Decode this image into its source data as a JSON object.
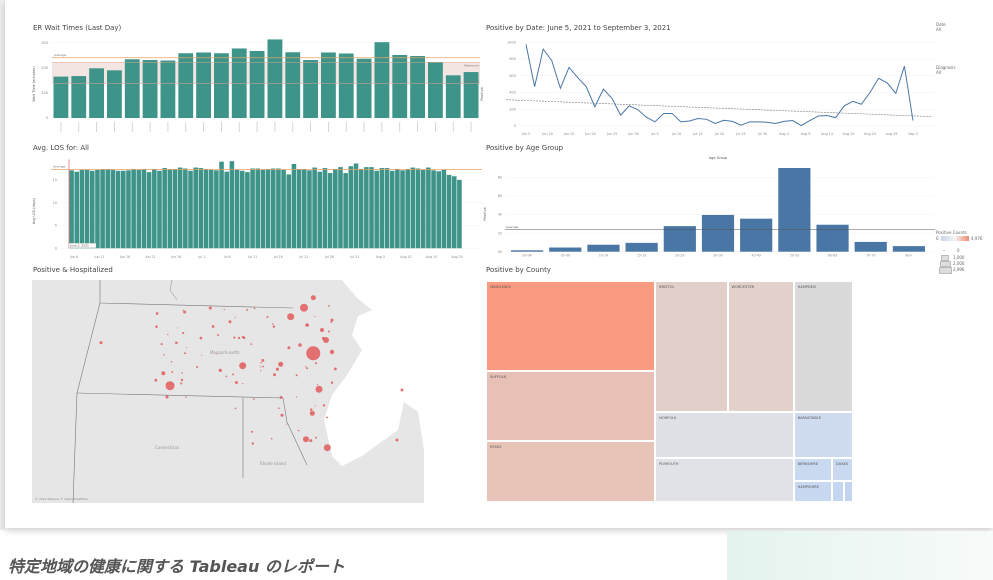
{
  "caption": "特定地域の健康に関する Tableau のレポート",
  "colors": {
    "teal": "#3f948a",
    "blue": "#4a76a6",
    "average_line": "#e7a46a",
    "map_dot": "#e05a5a",
    "map_land": "#e6e6e6"
  },
  "chart_data": [
    {
      "type": "bar",
      "title": "ER Wait Times (Last Day)",
      "ylabel": "Wait Time (minutes)",
      "ylim": [
        0,
        300
      ],
      "yticks": [
        "0",
        "100",
        "200",
        "300"
      ],
      "values": [
        165,
        167,
        198,
        190,
        234,
        231,
        229,
        258,
        261,
        258,
        277,
        267,
        313,
        262,
        231,
        261,
        257,
        236,
        302,
        251,
        247,
        222,
        170,
        183
      ],
      "reference_lines": [
        {
          "label": "Average",
          "value": 240
        },
        {
          "label": "Maximum",
          "value": 222
        },
        {
          "label": "Expected",
          "value": 137
        }
      ]
    },
    {
      "type": "line",
      "title": "Positive by Date: June 5, 2021 to September 3, 2021",
      "ylabel": "Positive",
      "ylim": [
        0,
        1000
      ],
      "yticks": [
        "0",
        "200",
        "400",
        "600",
        "800",
        "1000"
      ],
      "xticks": [
        "Jun 5",
        "Jun 10",
        "Jun 15",
        "Jun 20",
        "Jun 25",
        "Jun 30",
        "Jul 5",
        "Jul 10",
        "Jul 15",
        "Jul 20",
        "Jul 25",
        "Jul 30",
        "Aug 4",
        "Aug 9",
        "Aug 14",
        "Aug 19",
        "Aug 24",
        "Aug 29",
        "Sep 3"
      ],
      "x": [
        "Jun 5",
        "Jun 7",
        "Jun 9",
        "Jun 11",
        "Jun 13",
        "Jun 15",
        "Jun 17",
        "Jun 19",
        "Jun 21",
        "Jun 23",
        "Jun 25",
        "Jun 27",
        "Jun 29",
        "Jul 1",
        "Jul 3",
        "Jul 5",
        "Jul 7",
        "Jul 9",
        "Jul 11",
        "Jul 13",
        "Jul 15",
        "Jul 17",
        "Jul 19",
        "Jul 21",
        "Jul 23",
        "Jul 25",
        "Jul 27",
        "Jul 29",
        "Jul 31",
        "Aug 2",
        "Aug 4",
        "Aug 6",
        "Aug 8",
        "Aug 10",
        "Aug 12",
        "Aug 14",
        "Aug 16",
        "Aug 18",
        "Aug 20",
        "Aug 22",
        "Aug 24",
        "Aug 26",
        "Aug 28",
        "Aug 30",
        "Sep 1",
        "Sep 3"
      ],
      "values": [
        975,
        470,
        920,
        780,
        450,
        700,
        580,
        470,
        230,
        440,
        330,
        130,
        240,
        195,
        105,
        50,
        150,
        150,
        50,
        60,
        90,
        80,
        30,
        68,
        55,
        10,
        50,
        50,
        45,
        30,
        55,
        65,
        5,
        65,
        120,
        125,
        100,
        240,
        295,
        260,
        400,
        570,
        515,
        390,
        715,
        65
      ],
      "trend_line": {
        "start": 300,
        "end": 120
      },
      "filters": [
        {
          "label": "Date",
          "value": "All"
        },
        {
          "label": "Diagnosis",
          "value": "All"
        }
      ]
    },
    {
      "type": "bar",
      "title": "Avg. LOS for: All",
      "ylabel": "Avg LOS (days)",
      "ylim": [
        0,
        19
      ],
      "yticks": [
        "0",
        "5",
        "10",
        "15"
      ],
      "xticks": [
        "Jun 6",
        "Jun 11",
        "Jun 16",
        "Jun 21",
        "Jun 26",
        "Jul 1",
        "Jul 6",
        "Jul 11",
        "Jul 16",
        "Jul 21",
        "Jul 26",
        "Jul 31",
        "Aug 5",
        "Aug 10",
        "Aug 15",
        "Aug 20"
      ],
      "values": [
        17.1,
        16.8,
        17.2,
        17.2,
        17.0,
        17.2,
        17.3,
        17.3,
        17.2,
        17.0,
        17.0,
        17.1,
        17.4,
        17.2,
        17.3,
        16.7,
        17.4,
        17.0,
        17.6,
        17.3,
        17.3,
        17.7,
        17.5,
        17.0,
        17.7,
        17.6,
        17.4,
        17.2,
        17.1,
        19.0,
        16.8,
        19.1,
        17.2,
        17.0,
        16.7,
        17.5,
        17.5,
        17.2,
        17.3,
        17.5,
        17.5,
        17.2,
        16.2,
        18.5,
        17.3,
        17.3,
        17.1,
        17.7,
        16.8,
        17.6,
        16.5,
        17.3,
        17.8,
        16.5,
        18.0,
        18.6,
        17.4,
        17.8,
        17.8,
        17.0,
        17.6,
        17.6,
        17.0,
        17.4,
        17.1,
        17.3,
        17.7,
        17.5,
        17.2,
        17.7,
        17.1,
        16.9,
        17.2,
        16.1,
        15.8,
        15.0
      ],
      "reference_lines": [
        {
          "label": "Average",
          "value": 17.3
        }
      ],
      "annotation": "June 5, 2021"
    },
    {
      "type": "bar",
      "title": "Positive by Age Group",
      "header": "Age Group",
      "ylabel": "Positive",
      "ylim": [
        0,
        9500
      ],
      "yticks": [
        "0k",
        "2k",
        "4k",
        "6k",
        "8k"
      ],
      "categories": [
        "00-04",
        "05-09",
        "10-14",
        "15-19",
        "20-29",
        "30-39",
        "40-49",
        "50-59",
        "60-69",
        "70-79",
        "80+"
      ],
      "values": [
        150,
        450,
        750,
        950,
        2750,
        3950,
        3550,
        9000,
        2900,
        1050,
        600
      ],
      "reference_lines": [
        {
          "label": "Average",
          "value": 2400
        }
      ],
      "legend": {
        "title": "Positive Counts",
        "min": "0",
        "max": "4,976",
        "sizes": [
          "0",
          "1,000",
          "2,000",
          "2,996"
        ]
      }
    }
  ],
  "map": {
    "title": "Positive & Hospitalized",
    "labels": [
      "Massachusetts",
      "Connecticut",
      "Rhode Island"
    ],
    "attribution": "© 2021 Mapbox © OpenStreetMap"
  },
  "treemap": {
    "title": "Positive by County",
    "cells": [
      {
        "name": "MIDDLESEX",
        "color": "#f99b80"
      },
      {
        "name": "SUFFOLK",
        "color": "#e8c1b6"
      },
      {
        "name": "ESSEX",
        "color": "#e8c3b8"
      },
      {
        "name": "BRISTOL",
        "color": "#e3cfca"
      },
      {
        "name": "WORCESTER",
        "color": "#e3d1cc"
      },
      {
        "name": "HAMPDEN",
        "color": "#dadada"
      },
      {
        "name": "NORFOLK",
        "color": "#dfe1e6"
      },
      {
        "name": "PLYMOUTH",
        "color": "#e0e2e7"
      },
      {
        "name": "BARNSTABLE",
        "color": "#cfdcef"
      },
      {
        "name": "BERKSHIRE",
        "color": "#c9d9f0"
      },
      {
        "name": "DUKES",
        "color": "#c9d9f0"
      },
      {
        "name": "HAMPSHIRE",
        "color": "#c8d8f0"
      },
      {
        "name": "",
        "color": "#c4d6f0"
      },
      {
        "name": "",
        "color": "#c2d4f0"
      }
    ]
  }
}
